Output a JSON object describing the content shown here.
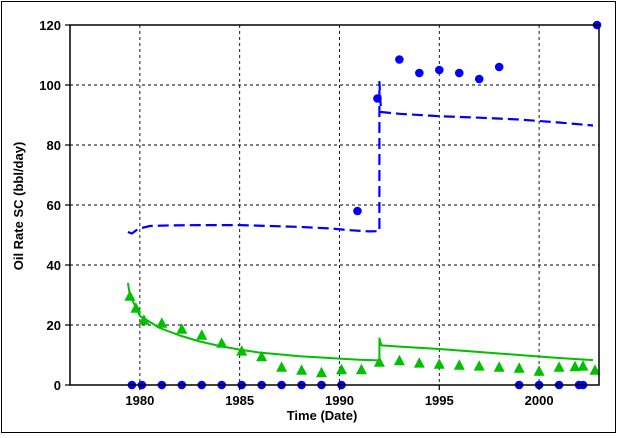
{
  "chart_data": {
    "type": "scatter",
    "xlabel": "Time (Date)",
    "ylabel": "Oil Rate SC (bbl/day)",
    "xlim": [
      1976.5,
      2003.0
    ],
    "ylim": [
      0,
      120
    ],
    "x_ticks": [
      1980,
      1985,
      1990,
      1995,
      2000
    ],
    "y_ticks": [
      0,
      20,
      40,
      60,
      80,
      100,
      120
    ],
    "grid": true,
    "grid_style": "dashed",
    "series": [
      {
        "kind": "points",
        "marker": "circle",
        "color": "#0000ff",
        "x": [
          1979.6,
          1980.1,
          1981.1,
          1982.1,
          1983.1,
          1984.1,
          1985.1,
          1986.1,
          1987.1,
          1988.1,
          1989.1,
          1990.1,
          1990.9,
          1991.9,
          1993.0,
          1994.0,
          1995.0,
          1996.0,
          1997.0,
          1998.0,
          1999.0,
          2000.0,
          2001.0,
          2002.0,
          2002.2,
          2002.9
        ],
        "y": [
          0,
          0,
          0,
          0,
          0,
          0,
          0,
          0,
          0,
          0,
          0,
          0,
          58,
          95.5,
          108.5,
          104,
          105,
          104,
          102,
          106,
          0,
          0,
          0,
          0,
          0,
          120
        ]
      },
      {
        "kind": "line",
        "dash": "dashed",
        "color": "#0000ff",
        "x": [
          1979.4,
          1979.6,
          1979.9,
          1980.5,
          1981.5,
          1983,
          1985,
          1986.5,
          1988,
          1989.5,
          1990.5,
          1991.5,
          1992.0,
          1992.0,
          1992.08,
          1993,
          1995,
          1997,
          1999,
          2001,
          2002.7
        ],
        "y": [
          51,
          50.5,
          52,
          53,
          53.2,
          53.3,
          53.3,
          53,
          52.7,
          52.2,
          51.6,
          51.2,
          51.3,
          101,
          91,
          90.4,
          89.6,
          89.1,
          88.5,
          87.5,
          86.5
        ]
      },
      {
        "kind": "points",
        "marker": "triangle",
        "color": "#00c000",
        "x": [
          1979.5,
          1979.8,
          1980.2,
          1981.1,
          1982.1,
          1983.1,
          1984.1,
          1985.1,
          1986.1,
          1987.1,
          1988.1,
          1989.1,
          1990.1,
          1991.1,
          1992.0,
          1993.0,
          1994.0,
          1995.0,
          1996.0,
          1997.0,
          1998.0,
          1999.0,
          2000.0,
          2001.0,
          2001.8,
          2002.2,
          2002.8
        ],
        "y": [
          29.5,
          25.5,
          21.5,
          20.5,
          18.5,
          16.5,
          13.8,
          11.2,
          9.3,
          5.8,
          4.8,
          4,
          5,
          5,
          7.5,
          8,
          7.2,
          6.8,
          6.5,
          6.2,
          5.8,
          5.5,
          4.5,
          5.8,
          6,
          6.2,
          4.8
        ]
      },
      {
        "kind": "line",
        "dash": "solid",
        "color": "#00c000",
        "x": [
          1979.4,
          1979.5,
          1980,
          1981,
          1982,
          1983,
          1984,
          1985,
          1986,
          1987,
          1988,
          1989,
          1990,
          1991,
          1991.95,
          1992.0,
          1992.0,
          1992.1,
          1993,
          1995,
          1997,
          1999,
          2001,
          2002.7
        ],
        "y": [
          34,
          30,
          23,
          19,
          16.5,
          14.5,
          13,
          11.8,
          10.8,
          10.2,
          9.6,
          9.2,
          8.8,
          8.4,
          8.2,
          8.2,
          15.5,
          13.2,
          12.8,
          12,
          11,
          10,
          9,
          8.3
        ]
      }
    ]
  }
}
